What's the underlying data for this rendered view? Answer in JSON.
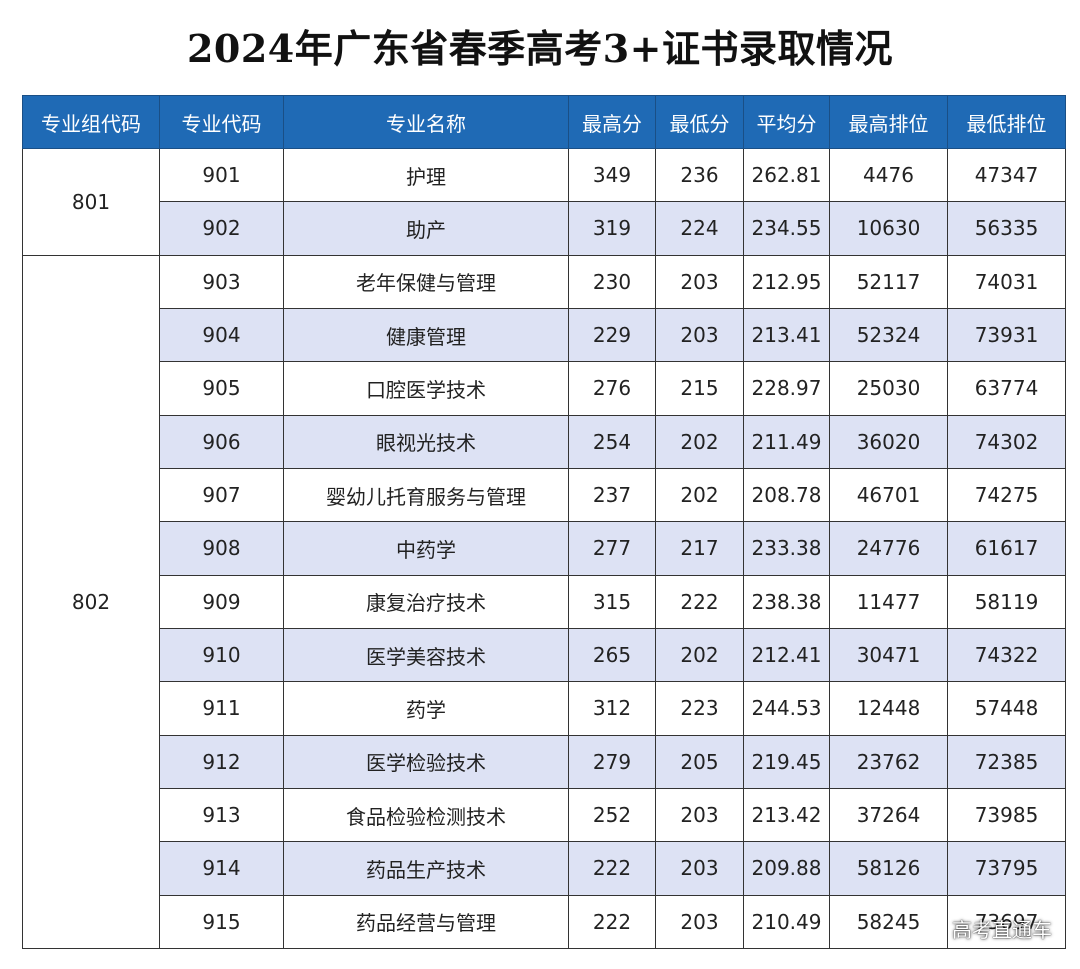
{
  "title": "2024年广东省春季高考3+证书录取情况",
  "headers": [
    "专业组代码",
    "专业代码",
    "专业名称",
    "最高分",
    "最低分",
    "平均分",
    "最高排位",
    "最低排位"
  ],
  "groups": [
    {
      "code": "801",
      "rows": [
        [
          "901",
          "护理",
          "349",
          "236",
          "262.81",
          "4476",
          "47347"
        ],
        [
          "902",
          "助产",
          "319",
          "224",
          "234.55",
          "10630",
          "56335"
        ]
      ]
    },
    {
      "code": "802",
      "rows": [
        [
          "903",
          "老年保健与管理",
          "230",
          "203",
          "212.95",
          "52117",
          "74031"
        ],
        [
          "904",
          "健康管理",
          "229",
          "203",
          "213.41",
          "52324",
          "73931"
        ],
        [
          "905",
          "口腔医学技术",
          "276",
          "215",
          "228.97",
          "25030",
          "63774"
        ],
        [
          "906",
          "眼视光技术",
          "254",
          "202",
          "211.49",
          "36020",
          "74302"
        ],
        [
          "907",
          "婴幼儿托育服务与管理",
          "237",
          "202",
          "208.78",
          "46701",
          "74275"
        ],
        [
          "908",
          "中药学",
          "277",
          "217",
          "233.38",
          "24776",
          "61617"
        ],
        [
          "909",
          "康复治疗技术",
          "315",
          "222",
          "238.38",
          "11477",
          "58119"
        ],
        [
          "910",
          "医学美容技术",
          "265",
          "202",
          "212.41",
          "30471",
          "74322"
        ],
        [
          "911",
          "药学",
          "312",
          "223",
          "244.53",
          "12448",
          "57448"
        ],
        [
          "912",
          "医学检验技术",
          "279",
          "205",
          "219.45",
          "23762",
          "72385"
        ],
        [
          "913",
          "食品检验检测技术",
          "252",
          "203",
          "213.42",
          "37264",
          "73985"
        ],
        [
          "914",
          "药品生产技术",
          "222",
          "203",
          "209.88",
          "58126",
          "73795"
        ],
        [
          "915",
          "药品经营与管理",
          "222",
          "203",
          "210.49",
          "58245",
          "73697"
        ]
      ]
    }
  ],
  "watermark": "高考直通车"
}
